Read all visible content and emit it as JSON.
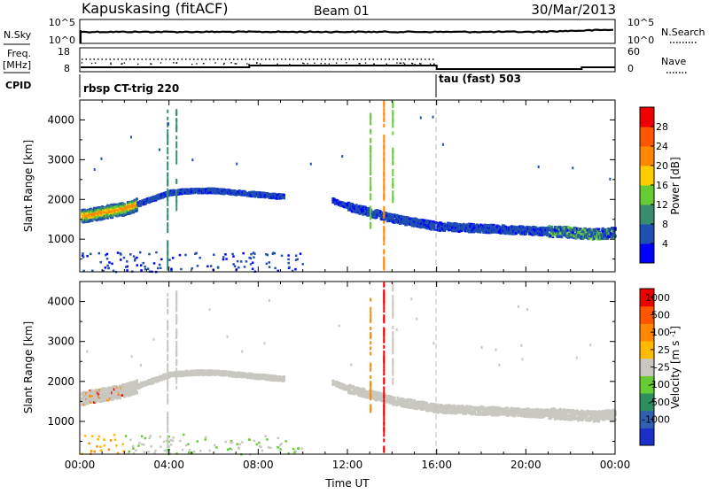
{
  "header": {
    "title": "Kapuskasing (fitACF)",
    "beam": "Beam 01",
    "date": "30/Mar/2013"
  },
  "noise_panel": {
    "left_label": "N.Sky",
    "right_label": "N.Search",
    "left_ticks": [
      "10^5",
      "10^0"
    ],
    "right_ticks": [
      "10^5",
      "10^0"
    ]
  },
  "freq_panel": {
    "left_label_1": "Freq.",
    "left_label_2": "[MHz]",
    "right_label": "Nave",
    "left_ticks": [
      "18",
      "8"
    ],
    "right_ticks": [
      "60",
      "0"
    ]
  },
  "cpid": {
    "label": "CPID",
    "segments": [
      {
        "start_hour": 0,
        "name": "rbsp CT-trig 220"
      },
      {
        "start_hour": 16,
        "name": "tau (fast) 503"
      }
    ]
  },
  "chart_data": [
    {
      "type": "heatmap",
      "name": "power",
      "ylabel": "Slant Range [km]",
      "xlabel": "Time UT",
      "xlim": [
        0,
        24
      ],
      "ylim": [
        180,
        4500
      ],
      "yticks": [
        1000,
        2000,
        3000,
        4000
      ],
      "xtick_labels": [
        "00:00",
        "04:00",
        "08:00",
        "12:00",
        "16:00",
        "20:00",
        "00:00"
      ],
      "colorbar": {
        "label": "Power [dB]",
        "ticks": [
          "4",
          "8",
          "12",
          "16",
          "20",
          "24",
          "28"
        ],
        "colors": [
          "#0000ff",
          "#1f4fb0",
          "#3a8c6e",
          "#66cc33",
          "#ffcc00",
          "#ff8800",
          "#ff5500",
          "#ee0000"
        ]
      },
      "echo_band": [
        {
          "t": 0.0,
          "r": 1600
        },
        {
          "t": 1.0,
          "r": 1700
        },
        {
          "t": 2.0,
          "r": 1800
        },
        {
          "t": 3.0,
          "r": 2000
        },
        {
          "t": 4.0,
          "r": 2200
        },
        {
          "t": 5.0,
          "r": 2250
        },
        {
          "t": 6.0,
          "r": 2250
        },
        {
          "t": 7.0,
          "r": 2200
        },
        {
          "t": 8.0,
          "r": 2150
        },
        {
          "t": 9.0,
          "r": 2100
        },
        {
          "t": 11.3,
          "r": 2000
        },
        {
          "t": 12.0,
          "r": 1850
        },
        {
          "t": 13.0,
          "r": 1700
        },
        {
          "t": 14.0,
          "r": 1550
        },
        {
          "t": 15.0,
          "r": 1450
        },
        {
          "t": 16.0,
          "r": 1350
        },
        {
          "t": 18.0,
          "r": 1300
        },
        {
          "t": 20.0,
          "r": 1250
        },
        {
          "t": 22.0,
          "r": 1200
        },
        {
          "t": 23.0,
          "r": 1150
        },
        {
          "t": 24.0,
          "r": 1200
        }
      ]
    },
    {
      "type": "heatmap",
      "name": "velocity",
      "ylabel": "Slant Range [km]",
      "xlabel": "Time UT",
      "xlim": [
        0,
        24
      ],
      "ylim": [
        180,
        4500
      ],
      "yticks": [
        1000,
        2000,
        3000,
        4000
      ],
      "xtick_labels": [
        "00:00",
        "04:00",
        "08:00",
        "12:00",
        "16:00",
        "20:00",
        "00:00"
      ],
      "colorbar": {
        "label": "Velocity [m s^-1]",
        "ticks": [
          "1000",
          "500",
          "100",
          "25",
          "-25",
          "-100",
          "-500",
          "-1000"
        ],
        "colors": [
          "#1a30c8",
          "#2f5fae",
          "#2e8f5e",
          "#66cc33",
          "#c8c8c0",
          "#ffbb00",
          "#ff8800",
          "#ff5500",
          "#ee0000"
        ]
      }
    }
  ],
  "xaxis_label": "Time UT"
}
